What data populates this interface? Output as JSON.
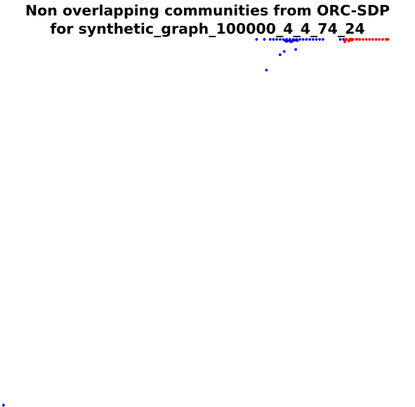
{
  "chart_data": {
    "type": "scatter",
    "title_lines": [
      "Non overlapping communities from ORC-SDP",
      "for synthetic_graph_100000_4_4_74_24"
    ],
    "xlabel": "",
    "ylabel": "",
    "axes_visible": false,
    "grid": false,
    "legend": "none",
    "xlim": [
      0,
      1
    ],
    "ylim": [
      0,
      1
    ],
    "series": [
      {
        "color": "#0000ff",
        "points": [
          [
            0.619,
            0.906
          ],
          [
            0.638,
            0.906
          ],
          [
            0.652,
            0.906
          ],
          [
            0.66,
            0.906
          ],
          [
            0.668,
            0.906
          ],
          [
            0.676,
            0.906
          ],
          [
            0.684,
            0.906
          ],
          [
            0.692,
            0.906
          ],
          [
            0.7,
            0.906
          ],
          [
            0.708,
            0.906
          ],
          [
            0.716,
            0.906
          ],
          [
            0.724,
            0.906
          ],
          [
            0.732,
            0.906
          ],
          [
            0.74,
            0.906
          ],
          [
            0.748,
            0.906
          ],
          [
            0.756,
            0.906
          ],
          [
            0.764,
            0.906
          ],
          [
            0.772,
            0.906
          ],
          [
            0.78,
            0.906
          ],
          [
            0.688,
            0.903
          ],
          [
            0.692,
            0.901
          ],
          [
            0.695,
            0.902
          ],
          [
            0.7,
            0.903
          ],
          [
            0.704,
            0.901
          ],
          [
            0.708,
            0.903
          ],
          [
            0.713,
            0.904
          ],
          [
            0.718,
            0.903
          ],
          [
            0.703,
            0.9
          ],
          [
            0.822,
            0.906
          ],
          [
            0.83,
            0.906
          ],
          [
            0.837,
            0.906
          ],
          [
            0.714,
            0.881
          ],
          [
            0.686,
            0.876
          ],
          [
            0.676,
            0.868
          ],
          [
            0.643,
            0.83
          ],
          [
            0.005,
            0.001
          ]
        ]
      },
      {
        "color": "#ff0000",
        "points": [
          [
            0.837,
            0.906
          ],
          [
            0.845,
            0.906
          ],
          [
            0.853,
            0.906
          ],
          [
            0.861,
            0.906
          ],
          [
            0.869,
            0.906
          ],
          [
            0.877,
            0.906
          ],
          [
            0.885,
            0.906
          ],
          [
            0.893,
            0.906
          ],
          [
            0.901,
            0.906
          ],
          [
            0.909,
            0.906
          ],
          [
            0.917,
            0.906
          ],
          [
            0.925,
            0.906
          ],
          [
            0.933,
            0.906
          ],
          [
            0.938,
            0.906
          ],
          [
            0.848,
            0.907
          ],
          [
            0.862,
            0.907
          ],
          [
            0.835,
            0.905
          ],
          [
            0.843,
            0.902
          ],
          [
            0.85,
            0.904
          ],
          [
            0.833,
            0.9
          ]
        ]
      }
    ]
  }
}
